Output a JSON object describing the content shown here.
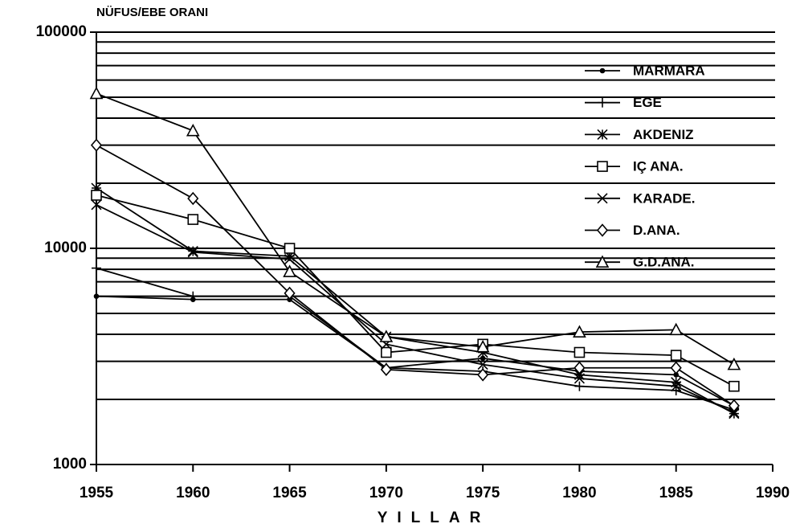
{
  "chart_data": {
    "type": "line",
    "y_label": "NÜFUS/EBE ORANI",
    "x_label": "YILLAR",
    "x": [
      1955,
      1960,
      1965,
      1970,
      1975,
      1980,
      1985,
      1988
    ],
    "xlim": [
      1955,
      1990
    ],
    "xticks": [
      1955,
      1960,
      1965,
      1970,
      1975,
      1980,
      1985,
      1990
    ],
    "ylim": [
      1000,
      100000
    ],
    "yticks": [
      1000,
      10000,
      100000
    ],
    "minor_yticks": [
      2000,
      3000,
      4000,
      5000,
      6000,
      7000,
      8000,
      9000,
      20000,
      30000,
      40000,
      50000,
      60000,
      70000,
      80000,
      90000
    ],
    "log_y": true,
    "grid": true,
    "legend": "upper right",
    "series": [
      {
        "name": "MARMARA",
        "color": "#000000",
        "marker": "dot",
        "values": [
          6000,
          5800,
          5800,
          2800,
          3100,
          2700,
          2600,
          1870
        ]
      },
      {
        "name": "EGE",
        "color": "#000000",
        "marker": "plus",
        "values": [
          8100,
          6000,
          6000,
          2800,
          2700,
          2300,
          2200,
          1790
        ]
      },
      {
        "name": "AKDENIZ",
        "color": "#000000",
        "marker": "star",
        "values": [
          19000,
          9700,
          9200,
          3900,
          3300,
          2600,
          2400,
          1720
        ]
      },
      {
        "name": "IÇ ANA.",
        "color": "#000000",
        "marker": "square",
        "values": [
          17600,
          13600,
          10000,
          3300,
          3600,
          3300,
          3200,
          2300
        ]
      },
      {
        "name": "KARADE.",
        "color": "#000000",
        "marker": "cross",
        "values": [
          15900,
          9600,
          8900,
          3600,
          2900,
          2500,
          2300,
          1740
        ]
      },
      {
        "name": "D.ANA.",
        "color": "#000000",
        "marker": "diamond",
        "values": [
          30000,
          17000,
          6200,
          2750,
          2600,
          2800,
          2800,
          1870
        ]
      },
      {
        "name": "G.D.ANA.",
        "color": "#000000",
        "marker": "triangle",
        "values": [
          52000,
          35000,
          7800,
          3900,
          3500,
          4100,
          4200,
          2900
        ]
      }
    ]
  }
}
